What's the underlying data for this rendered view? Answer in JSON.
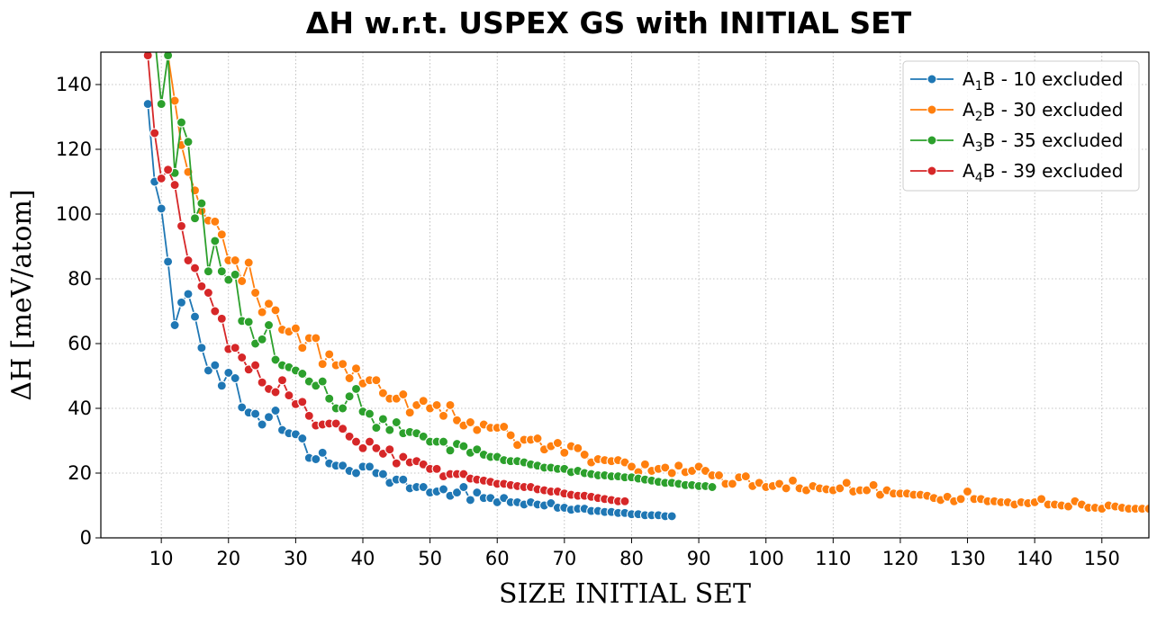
{
  "chart_data": {
    "type": "line",
    "title": "ΔH w.r.t. USPEX GS with INITIAL SET",
    "xlabel": "SIZE INITIAL SET",
    "ylabel": "ΔH [meV/atom]",
    "xlim": [
      1,
      157
    ],
    "ylim": [
      0,
      150
    ],
    "xticks": [
      10,
      20,
      30,
      40,
      50,
      60,
      70,
      80,
      90,
      100,
      110,
      120,
      130,
      140,
      150
    ],
    "yticks": [
      0,
      20,
      40,
      60,
      80,
      100,
      120,
      140
    ],
    "grid": true,
    "legend_position": "top-right",
    "series": [
      {
        "name": "A1B - 10 excluded",
        "label_parts": {
          "prefix": "A",
          "sub": "1",
          "suffix": "B - 10 excluded"
        },
        "color": "#1f77b4",
        "x_start": 8,
        "values": [
          134,
          110,
          101.7,
          85.3,
          65.7,
          72.7,
          75.3,
          68.3,
          58.7,
          51.7,
          53.3,
          47,
          51,
          49.3,
          40.3,
          38.7,
          38.3,
          35,
          37.3,
          39.3,
          33.3,
          32.3,
          32,
          30.7,
          24.7,
          24.3,
          26.3,
          23,
          22.3,
          22.3,
          20.7,
          20,
          22,
          22,
          20,
          19.7,
          17,
          18,
          18,
          15.3,
          15.7,
          15.7,
          14,
          14.3,
          15,
          13,
          14,
          15.7,
          11.7,
          14,
          12.3,
          12.3,
          11,
          12.3,
          11,
          11,
          10.3,
          11,
          10.3,
          10,
          10.7,
          9.3,
          9.3,
          8.7,
          9,
          9,
          8.3,
          8.3,
          8,
          8,
          7.7,
          7.7,
          7.3,
          7.3,
          7,
          7,
          7,
          6.7,
          6.7
        ]
      },
      {
        "name": "A2B - 30 excluded",
        "label_parts": {
          "prefix": "A",
          "sub": "2",
          "suffix": "B - 30 excluded"
        },
        "color": "#ff7f0e",
        "x_start": 10,
        "values": [
          155,
          149,
          135,
          121.3,
          113,
          107.3,
          101,
          98,
          97.7,
          93.7,
          85.7,
          85.7,
          79.3,
          85,
          75.7,
          69.7,
          72.3,
          70.3,
          64.3,
          63.7,
          64.7,
          58.7,
          61.7,
          61.7,
          53.7,
          56.7,
          53.3,
          53.7,
          49.3,
          52.3,
          47.7,
          48.7,
          48.7,
          44.7,
          43,
          43,
          44.3,
          38.7,
          41,
          42.3,
          40,
          41,
          37.7,
          41,
          36.3,
          34.7,
          35.7,
          33.3,
          35,
          34,
          34,
          34.3,
          31.7,
          28.7,
          30.3,
          30.3,
          30.7,
          27.3,
          28.3,
          29.3,
          26.3,
          28.3,
          27.7,
          25.7,
          23.3,
          24.3,
          24,
          23.7,
          24,
          23.3,
          22,
          20.3,
          22.7,
          20.7,
          21.3,
          21.7,
          20,
          22.3,
          20.3,
          20.7,
          22,
          20.7,
          19.3,
          19.3,
          16.7,
          16.7,
          18.7,
          19,
          16,
          17,
          15.7,
          16,
          16.7,
          15.3,
          17.7,
          15.3,
          14.7,
          16,
          15.3,
          15,
          14.7,
          15.3,
          17,
          14.3,
          14.7,
          14.7,
          16.3,
          13.3,
          14.7,
          13.7,
          13.7,
          13.7,
          13.3,
          13.3,
          13,
          12.3,
          11.7,
          12.7,
          11.3,
          12,
          14.3,
          12,
          12,
          11.3,
          11.3,
          11,
          11,
          10.3,
          11,
          10.7,
          11,
          12,
          10.3,
          10.3,
          10,
          9.7,
          11.3,
          10.3,
          9.3,
          9.3,
          9,
          10,
          9.7,
          9.3,
          9,
          9,
          9,
          9,
          9,
          9.3,
          9,
          9,
          8.7
        ]
      },
      {
        "name": "A3B - 35 excluded",
        "label_parts": {
          "prefix": "A",
          "sub": "3",
          "suffix": "B - 35 excluded"
        },
        "color": "#2ca02c",
        "x_start": 9,
        "values": [
          155,
          134,
          149,
          112.7,
          128.3,
          122.3,
          98.7,
          103.3,
          82.3,
          91.7,
          82.3,
          79.7,
          81.3,
          67,
          66.7,
          60,
          61.3,
          65.7,
          55,
          53.3,
          52.7,
          51.7,
          50.7,
          48.3,
          47,
          48.3,
          43,
          40,
          40,
          43.7,
          46,
          39,
          38.3,
          34,
          36.7,
          33.3,
          35.7,
          32.3,
          32.7,
          32.3,
          31.3,
          29.7,
          29.7,
          29.7,
          27,
          29,
          28.3,
          26.3,
          27.3,
          25.7,
          25,
          25,
          24,
          23.7,
          23.7,
          23.3,
          22.7,
          22.3,
          21.7,
          21.7,
          21.3,
          21.3,
          20.3,
          20.7,
          20,
          19.7,
          19.3,
          19.3,
          19,
          19,
          18.7,
          18.7,
          18.3,
          18,
          17.7,
          17.3,
          17,
          17,
          16.7,
          16.3,
          16.3,
          16,
          16,
          15.7
        ]
      },
      {
        "name": "A4B - 39 excluded",
        "label_parts": {
          "prefix": "A",
          "sub": "4",
          "suffix": "B - 39 excluded"
        },
        "color": "#d62728",
        "x_start": 8,
        "values": [
          149,
          125,
          111,
          113.7,
          109,
          96.3,
          85.7,
          83.3,
          77.7,
          75.7,
          70,
          67.7,
          58.3,
          58.7,
          55.7,
          52,
          53.3,
          48,
          46,
          45,
          48.7,
          44,
          41.3,
          42,
          37.7,
          34.7,
          35,
          35.3,
          35.3,
          33.7,
          31.3,
          29.7,
          27.7,
          29.7,
          27.7,
          26,
          27.3,
          23,
          25,
          23.3,
          23.7,
          22.7,
          21.3,
          21.3,
          19,
          19.7,
          19.7,
          19.7,
          18.3,
          18,
          17.7,
          17.3,
          16.7,
          16.7,
          16.3,
          16,
          15.7,
          15.7,
          15,
          14.7,
          14.3,
          14.3,
          13.7,
          13.3,
          13,
          13,
          12.7,
          12.3,
          12,
          11.7,
          11.3,
          11.3
        ]
      }
    ]
  }
}
